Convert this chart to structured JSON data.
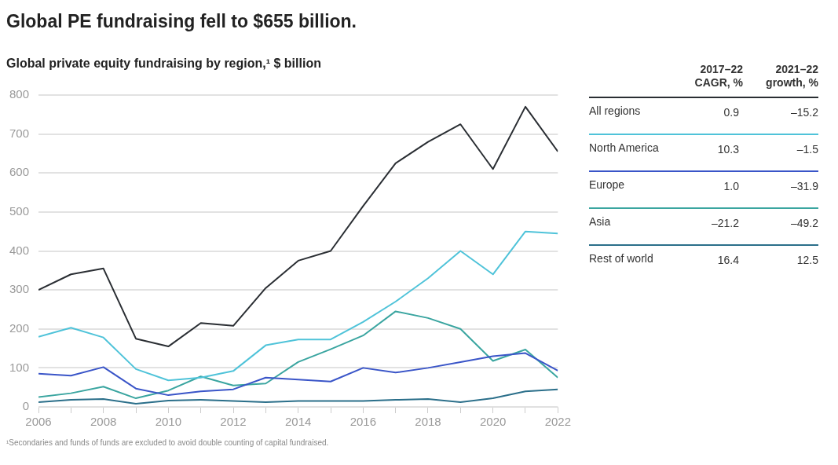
{
  "chart_data": [
    {
      "type": "line",
      "title": "Global PE fundraising fell to $655 billion.",
      "subtitle": "Global private equity fundraising by region,¹ $ billion",
      "x": [
        2006,
        2007,
        2008,
        2009,
        2010,
        2011,
        2012,
        2013,
        2014,
        2015,
        2016,
        2017,
        2018,
        2019,
        2020,
        2021,
        2022
      ],
      "series": [
        {
          "name": "All regions",
          "color": "#2a2e33",
          "values": [
            300,
            340,
            355,
            175,
            155,
            215,
            208,
            305,
            375,
            400,
            515,
            625,
            680,
            725,
            610,
            770,
            655
          ]
        },
        {
          "name": "North America",
          "color": "#4fc3d9",
          "values": [
            180,
            203,
            178,
            97,
            68,
            75,
            92,
            158,
            173,
            173,
            218,
            270,
            330,
            400,
            340,
            450,
            445
          ]
        },
        {
          "name": "Europe",
          "color": "#3a55c8",
          "values": [
            85,
            80,
            102,
            47,
            30,
            40,
            45,
            75,
            70,
            65,
            100,
            88,
            100,
            115,
            130,
            138,
            93
          ]
        },
        {
          "name": "Asia",
          "color": "#3aa5a0",
          "values": [
            25,
            35,
            52,
            22,
            42,
            78,
            55,
            60,
            115,
            148,
            183,
            245,
            228,
            200,
            118,
            147,
            75
          ]
        },
        {
          "name": "Rest of world",
          "color": "#2b6f8a",
          "values": [
            12,
            18,
            20,
            8,
            16,
            18,
            15,
            12,
            15,
            15,
            15,
            18,
            20,
            12,
            22,
            40,
            45
          ]
        }
      ],
      "xlim": [
        2006,
        2022
      ],
      "xticks": [
        2006,
        {
          "value": 2007,
          "label": null
        },
        2008,
        {
          "value": 2009,
          "label": null
        },
        2010,
        {
          "value": 2011,
          "label": null
        },
        2012,
        {
          "value": 2013,
          "label": null
        },
        2014,
        {
          "value": 2015,
          "label": null
        },
        2016,
        {
          "value": 2017,
          "label": null
        },
        2018,
        {
          "value": 2019,
          "label": null
        },
        2020,
        {
          "value": 2021,
          "label": null
        },
        2022
      ],
      "ylim": [
        0,
        800
      ],
      "yticks": [
        0,
        100,
        200,
        300,
        400,
        500,
        600,
        700,
        800
      ],
      "grid": "y",
      "legend": "right",
      "marker": "none",
      "line_style": "solid",
      "annotations": [
        "¹Secondaries and funds of funds are excluded to avoid double counting of capital fundraised."
      ]
    },
    {
      "type": "other",
      "categories": [
        "2017–22 CAGR, %",
        "2021–22 growth, %"
      ],
      "series": [
        {
          "values": [
            0.9,
            -15.2
          ],
          "value_labels": [
            "0.9",
            "–15.2"
          ]
        },
        {
          "values": [
            10.3,
            -1.5
          ],
          "value_labels": [
            "10.3",
            "–1.5"
          ]
        },
        {
          "values": [
            1.0,
            -31.9
          ],
          "value_labels": [
            "1.0",
            "–31.9"
          ]
        },
        {
          "values": [
            -21.2,
            -49.2
          ],
          "value_labels": [
            "–21.2",
            "–49.2"
          ]
        },
        {
          "values": [
            16.4,
            12.5
          ],
          "value_labels": [
            "16.4",
            "12.5"
          ]
        }
      ]
    }
  ]
}
